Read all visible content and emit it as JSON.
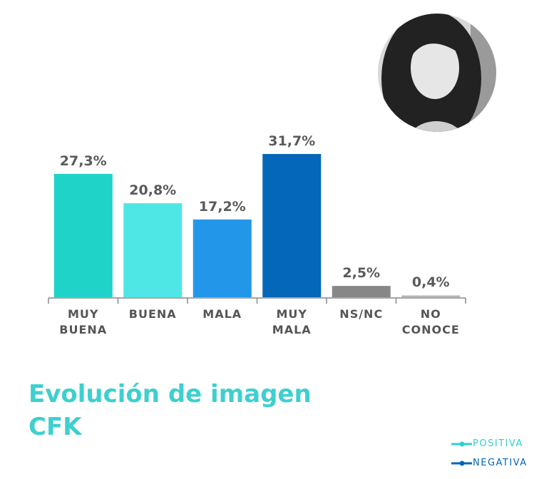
{
  "chart_data": {
    "type": "bar",
    "title": "Evolución de imagen CFK",
    "categories": [
      "MUY BUENA",
      "BUENA",
      "MALA",
      "MUY MALA",
      "NS/NC",
      "NO CONOCE"
    ],
    "values": [
      27.3,
      20.8,
      17.2,
      31.7,
      2.5,
      0.4
    ],
    "value_labels": [
      "27,3%",
      "20,8%",
      "17,2%",
      "31,7%",
      "2,5%",
      "0,4%"
    ],
    "colors": [
      "#1fd3c9",
      "#4fe7e6",
      "#2297e9",
      "#0567b9",
      "#878787",
      "#b5b5b5"
    ],
    "legend": [
      {
        "name": "POSITIVA",
        "color": "#2fd0cf"
      },
      {
        "name": "NEGATIVA",
        "color": "#0567b9"
      }
    ]
  }
}
